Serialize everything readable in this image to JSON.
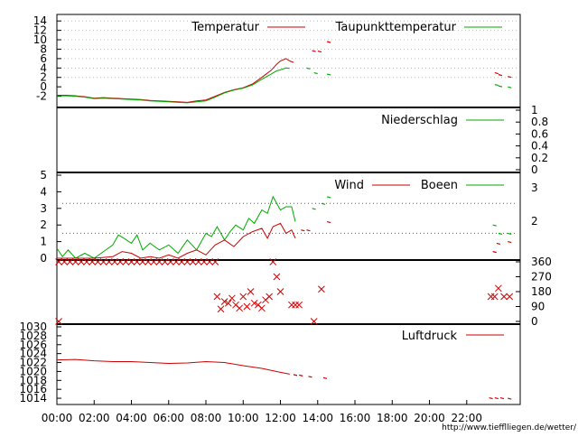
{
  "colors": {
    "red": "#cc0000",
    "green": "#00aa00",
    "grid": "#009900",
    "frame": "#000000",
    "gridgray": "#bbbbbb"
  },
  "footer_url": "http://www.tiefflliegen.de/wetter/",
  "x_ticks": [
    "00:00",
    "02:00",
    "04:00",
    "06:00",
    "08:00",
    "10:00",
    "12:00",
    "14:00",
    "16:00",
    "18:00",
    "20:00",
    "22:00"
  ],
  "chart_data": [
    {
      "type": "line",
      "x_unit": "hour",
      "xlim": [
        0,
        24
      ],
      "ylim": [
        -4,
        15
      ],
      "yticks": [
        -2,
        0,
        2,
        4,
        6,
        8,
        10,
        12,
        14
      ],
      "grid": "horizontal dotted",
      "legend": "top",
      "series": [
        {
          "name": "Temperatur",
          "color": "#cc0000",
          "points": [
            [
              0,
              -1.8
            ],
            [
              0.5,
              -1.8
            ],
            [
              1,
              -1.9
            ],
            [
              1.5,
              -2.1
            ],
            [
              2,
              -2.4
            ],
            [
              2.5,
              -2.3
            ],
            [
              3,
              -2.4
            ],
            [
              3.5,
              -2.5
            ],
            [
              4,
              -2.6
            ],
            [
              4.5,
              -2.7
            ],
            [
              5,
              -2.9
            ],
            [
              5.5,
              -3
            ],
            [
              6,
              -3.1
            ],
            [
              6.5,
              -3.2
            ],
            [
              7,
              -3.3
            ],
            [
              7.5,
              -3
            ],
            [
              8,
              -2.8
            ],
            [
              8.5,
              -2
            ],
            [
              9,
              -1.2
            ],
            [
              9.5,
              -0.6
            ],
            [
              10,
              -0.2
            ],
            [
              10.5,
              0.6
            ],
            [
              11,
              2
            ],
            [
              11.5,
              3.5
            ],
            [
              11.8,
              4.8
            ],
            [
              12,
              5.5
            ],
            [
              12.3,
              6
            ],
            [
              12.5,
              5.5
            ],
            [
              12.7,
              5.2
            ]
          ],
          "isolated": [
            [
              13.8,
              7.7
            ],
            [
              14.1,
              7.6
            ],
            [
              14.6,
              9.6
            ],
            [
              23.6,
              3
            ],
            [
              23.8,
              2.6
            ],
            [
              24.3,
              2.2
            ]
          ]
        },
        {
          "name": "Taupunkttemperatur",
          "color": "#00aa00",
          "points": [
            [
              0,
              -1.9
            ],
            [
              0.5,
              -1.9
            ],
            [
              1,
              -2
            ],
            [
              1.5,
              -2.2
            ],
            [
              2,
              -2.5
            ],
            [
              2.5,
              -2.4
            ],
            [
              3,
              -2.5
            ],
            [
              3.5,
              -2.6
            ],
            [
              4,
              -2.7
            ],
            [
              4.5,
              -2.8
            ],
            [
              5,
              -3
            ],
            [
              5.5,
              -3.1
            ],
            [
              6,
              -3.2
            ],
            [
              6.5,
              -3.3
            ],
            [
              7,
              -3.4
            ],
            [
              7.5,
              -3.2
            ],
            [
              8,
              -3
            ],
            [
              8.5,
              -2.2
            ],
            [
              9,
              -1.3
            ],
            [
              9.5,
              -0.7
            ],
            [
              10,
              -0.3
            ],
            [
              10.5,
              0.4
            ],
            [
              11,
              1.6
            ],
            [
              11.5,
              2.7
            ],
            [
              11.8,
              3.4
            ],
            [
              12,
              3.6
            ],
            [
              12.3,
              4
            ],
            [
              12.5,
              3.9
            ]
          ],
          "isolated": [
            [
              13.5,
              4
            ],
            [
              13.9,
              3
            ],
            [
              14.6,
              2.7
            ],
            [
              23.6,
              0.5
            ],
            [
              23.8,
              0.2
            ],
            [
              24.3,
              0
            ]
          ]
        }
      ]
    },
    {
      "type": "line",
      "x_unit": "hour",
      "xlim": [
        0,
        24
      ],
      "ylim": [
        0,
        1
      ],
      "yticks": [
        0,
        0.2,
        0.4,
        0.6,
        0.8,
        1
      ],
      "legend": "top-right",
      "series": [
        {
          "name": "Niederschlag",
          "color": "#00aa00",
          "points": []
        }
      ]
    },
    {
      "type": "line",
      "x_unit": "hour",
      "xlim": [
        0,
        24
      ],
      "ylim": [
        0,
        5
      ],
      "yticks": [
        0,
        1,
        2,
        3,
        4,
        5
      ],
      "y2ticks": [
        2,
        3
      ],
      "reference_lines": [
        1.5,
        3.3
      ],
      "legend": "top-right",
      "series": [
        {
          "name": "Wind",
          "color": "#cc0000",
          "points": [
            [
              0,
              0
            ],
            [
              1,
              0
            ],
            [
              2,
              0
            ],
            [
              3,
              0.1
            ],
            [
              3.5,
              0.4
            ],
            [
              4,
              0.3
            ],
            [
              4.5,
              0
            ],
            [
              5,
              0.1
            ],
            [
              5.5,
              0
            ],
            [
              6,
              0.2
            ],
            [
              6.5,
              0
            ],
            [
              7,
              0.3
            ],
            [
              7.5,
              0.5
            ],
            [
              8,
              0.2
            ],
            [
              8.5,
              0.8
            ],
            [
              9,
              1.1
            ],
            [
              9.5,
              0.7
            ],
            [
              10,
              1.3
            ],
            [
              10.5,
              1.6
            ],
            [
              11,
              1.8
            ],
            [
              11.3,
              1.2
            ],
            [
              11.6,
              1.9
            ],
            [
              12,
              2.1
            ],
            [
              12.3,
              1.5
            ],
            [
              12.6,
              1.7
            ],
            [
              12.8,
              1.2
            ]
          ],
          "isolated": [
            [
              13.2,
              1.7
            ],
            [
              13.5,
              1.7
            ],
            [
              14.6,
              2.2
            ],
            [
              23.5,
              0.4
            ],
            [
              23.7,
              0.9
            ],
            [
              24.3,
              1
            ]
          ]
        },
        {
          "name": "Boeen",
          "color": "#00aa00",
          "points": [
            [
              0,
              0.6
            ],
            [
              0.3,
              0.1
            ],
            [
              0.6,
              0.5
            ],
            [
              1,
              0
            ],
            [
              1.5,
              0.3
            ],
            [
              2,
              0
            ],
            [
              2.5,
              0.4
            ],
            [
              3,
              0.8
            ],
            [
              3.3,
              1.4
            ],
            [
              3.6,
              1.2
            ],
            [
              4,
              0.9
            ],
            [
              4.3,
              1.4
            ],
            [
              4.6,
              0.5
            ],
            [
              5,
              0.9
            ],
            [
              5.5,
              0.5
            ],
            [
              6,
              0.8
            ],
            [
              6.5,
              0.3
            ],
            [
              7,
              1.1
            ],
            [
              7.5,
              0.5
            ],
            [
              8,
              1.5
            ],
            [
              8.3,
              1.3
            ],
            [
              8.6,
              1.9
            ],
            [
              9,
              1.1
            ],
            [
              9.3,
              1.6
            ],
            [
              9.6,
              2
            ],
            [
              10,
              1.7
            ],
            [
              10.3,
              2.4
            ],
            [
              10.6,
              2.1
            ],
            [
              11,
              2.9
            ],
            [
              11.3,
              2.7
            ],
            [
              11.6,
              3.7
            ],
            [
              12,
              2.9
            ],
            [
              12.3,
              3.1
            ],
            [
              12.6,
              3.1
            ],
            [
              12.8,
              2.2
            ]
          ],
          "isolated": [
            [
              13.8,
              3
            ],
            [
              14.3,
              3.3
            ],
            [
              14.6,
              3.7
            ],
            [
              23.5,
              2
            ],
            [
              23.8,
              1.5
            ],
            [
              24.3,
              1.5
            ]
          ]
        }
      ]
    },
    {
      "type": "scatter",
      "x_unit": "hour",
      "xlim": [
        0,
        24
      ],
      "ylim": [
        0,
        360
      ],
      "y2ticks": [
        0,
        90,
        180,
        270,
        360
      ],
      "series": [
        {
          "name": "",
          "color": "#cc0000",
          "marker": "x",
          "points": [
            [
              0.1,
              360
            ],
            [
              0.4,
              360
            ],
            [
              0.7,
              360
            ],
            [
              1,
              360
            ],
            [
              1.3,
              360
            ],
            [
              1.6,
              360
            ],
            [
              1.9,
              360
            ],
            [
              2.2,
              360
            ],
            [
              2.5,
              360
            ],
            [
              2.8,
              360
            ],
            [
              3.1,
              360
            ],
            [
              3.4,
              360
            ],
            [
              3.7,
              360
            ],
            [
              4,
              360
            ],
            [
              4.3,
              360
            ],
            [
              4.6,
              360
            ],
            [
              4.9,
              360
            ],
            [
              5.2,
              360
            ],
            [
              5.5,
              360
            ],
            [
              5.8,
              360
            ],
            [
              6.1,
              360
            ],
            [
              6.4,
              360
            ],
            [
              6.7,
              360
            ],
            [
              7,
              360
            ],
            [
              7.3,
              360
            ],
            [
              7.6,
              360
            ],
            [
              7.9,
              360
            ],
            [
              8.2,
              360
            ],
            [
              8.5,
              360
            ],
            [
              0.1,
              0
            ],
            [
              8.6,
              150
            ],
            [
              8.8,
              75
            ],
            [
              9,
              120
            ],
            [
              9.2,
              110
            ],
            [
              9.4,
              140
            ],
            [
              9.6,
              100
            ],
            [
              9.8,
              80
            ],
            [
              10,
              150
            ],
            [
              10.2,
              90
            ],
            [
              10.4,
              180
            ],
            [
              10.6,
              110
            ],
            [
              10.8,
              100
            ],
            [
              11,
              80
            ],
            [
              11.2,
              130
            ],
            [
              11.4,
              150
            ],
            [
              11.6,
              360
            ],
            [
              11.8,
              270
            ],
            [
              12,
              180
            ],
            [
              12.6,
              100
            ],
            [
              12.8,
              100
            ],
            [
              13,
              100
            ],
            [
              13.8,
              0
            ],
            [
              14.2,
              195
            ],
            [
              23.3,
              150
            ],
            [
              23.5,
              150
            ],
            [
              23.7,
              200
            ],
            [
              24,
              150
            ],
            [
              24.3,
              150
            ]
          ]
        }
      ]
    },
    {
      "type": "line",
      "x_unit": "hour",
      "xlim": [
        0,
        24
      ],
      "ylim": [
        1013,
        1030
      ],
      "yticks": [
        1014,
        1016,
        1018,
        1020,
        1022,
        1024,
        1026,
        1028,
        1030
      ],
      "legend": "top-right",
      "series": [
        {
          "name": "Luftdruck",
          "color": "#cc0000",
          "points": [
            [
              0,
              1022.6
            ],
            [
              1,
              1022.7
            ],
            [
              2,
              1022.4
            ],
            [
              3,
              1022.2
            ],
            [
              4,
              1022.2
            ],
            [
              5,
              1022
            ],
            [
              6,
              1021.8
            ],
            [
              7,
              1021.9
            ],
            [
              8,
              1022.2
            ],
            [
              9,
              1022
            ],
            [
              10,
              1021.3
            ],
            [
              11,
              1020.7
            ],
            [
              12,
              1019.8
            ],
            [
              12.5,
              1019.4
            ]
          ],
          "isolated": [
            [
              12.8,
              1019.3
            ],
            [
              13.1,
              1019.2
            ],
            [
              13.6,
              1018.9
            ],
            [
              14.4,
              1018.6
            ],
            [
              23.3,
              1014.1
            ],
            [
              23.6,
              1014.1
            ],
            [
              23.9,
              1014.1
            ],
            [
              24.3,
              1014
            ]
          ]
        }
      ]
    }
  ],
  "legend_labels": {
    "temp": "Temperatur",
    "dew": "Taupunkttemperatur",
    "rain": "Niederschlag",
    "wind": "Wind",
    "gust": "Boeen",
    "pressure": "Luftdruck"
  }
}
